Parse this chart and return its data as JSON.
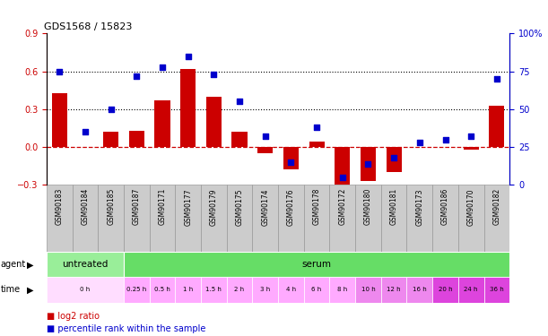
{
  "title": "GDS1568 / 15823",
  "samples": [
    "GSM90183",
    "GSM90184",
    "GSM90185",
    "GSM90187",
    "GSM90171",
    "GSM90177",
    "GSM90179",
    "GSM90175",
    "GSM90174",
    "GSM90176",
    "GSM90178",
    "GSM90172",
    "GSM90180",
    "GSM90181",
    "GSM90173",
    "GSM90186",
    "GSM90170",
    "GSM90182"
  ],
  "log2_ratio": [
    0.43,
    0.0,
    0.12,
    0.13,
    0.37,
    0.62,
    0.4,
    0.12,
    -0.05,
    -0.18,
    0.04,
    -0.37,
    -0.27,
    -0.2,
    0.0,
    0.0,
    -0.02,
    0.33
  ],
  "percentile": [
    75,
    35,
    50,
    72,
    78,
    85,
    73,
    55,
    32,
    15,
    38,
    5,
    14,
    18,
    28,
    30,
    32,
    70
  ],
  "bar_color": "#cc0000",
  "dot_color": "#0000cc",
  "hline_color": "#cc0000",
  "dotted_line_color": "#000000",
  "ylim_left": [
    -0.3,
    0.9
  ],
  "ylim_right": [
    0,
    100
  ],
  "yticks_left": [
    -0.3,
    0.0,
    0.3,
    0.6,
    0.9
  ],
  "yticks_right": [
    0,
    25,
    50,
    75,
    100
  ],
  "yticklabels_right": [
    "0",
    "25",
    "50",
    "75",
    "100%"
  ],
  "left_axis_color": "#cc0000",
  "right_axis_color": "#0000cc",
  "dotted_lines": [
    0.3,
    0.6
  ],
  "agent_row": [
    {
      "label": "untreated",
      "start": 0,
      "end": 3,
      "color": "#99ee99"
    },
    {
      "label": "serum",
      "start": 3,
      "end": 18,
      "color": "#66dd66"
    }
  ],
  "time_row": [
    {
      "label": "0 h",
      "start": 0,
      "end": 3,
      "color": "#ffddff"
    },
    {
      "label": "0.25 h",
      "start": 3,
      "end": 4,
      "color": "#ffaaff"
    },
    {
      "label": "0.5 h",
      "start": 4,
      "end": 5,
      "color": "#ffaaff"
    },
    {
      "label": "1 h",
      "start": 5,
      "end": 6,
      "color": "#ffaaff"
    },
    {
      "label": "1.5 h",
      "start": 6,
      "end": 7,
      "color": "#ffaaff"
    },
    {
      "label": "2 h",
      "start": 7,
      "end": 8,
      "color": "#ffaaff"
    },
    {
      "label": "3 h",
      "start": 8,
      "end": 9,
      "color": "#ffaaff"
    },
    {
      "label": "4 h",
      "start": 9,
      "end": 10,
      "color": "#ffaaff"
    },
    {
      "label": "6 h",
      "start": 10,
      "end": 11,
      "color": "#ffaaff"
    },
    {
      "label": "8 h",
      "start": 11,
      "end": 12,
      "color": "#ffaaff"
    },
    {
      "label": "10 h",
      "start": 12,
      "end": 13,
      "color": "#ee88ee"
    },
    {
      "label": "12 h",
      "start": 13,
      "end": 14,
      "color": "#ee88ee"
    },
    {
      "label": "16 h",
      "start": 14,
      "end": 15,
      "color": "#ee88ee"
    },
    {
      "label": "20 h",
      "start": 15,
      "end": 16,
      "color": "#dd44dd"
    },
    {
      "label": "24 h",
      "start": 16,
      "end": 17,
      "color": "#dd44dd"
    },
    {
      "label": "36 h",
      "start": 17,
      "end": 18,
      "color": "#dd44dd"
    }
  ],
  "legend_items": [
    {
      "label": "log2 ratio",
      "color": "#cc0000"
    },
    {
      "label": "percentile rank within the sample",
      "color": "#0000cc"
    }
  ],
  "sample_box_color": "#cccccc",
  "sample_box_edge": "#999999"
}
